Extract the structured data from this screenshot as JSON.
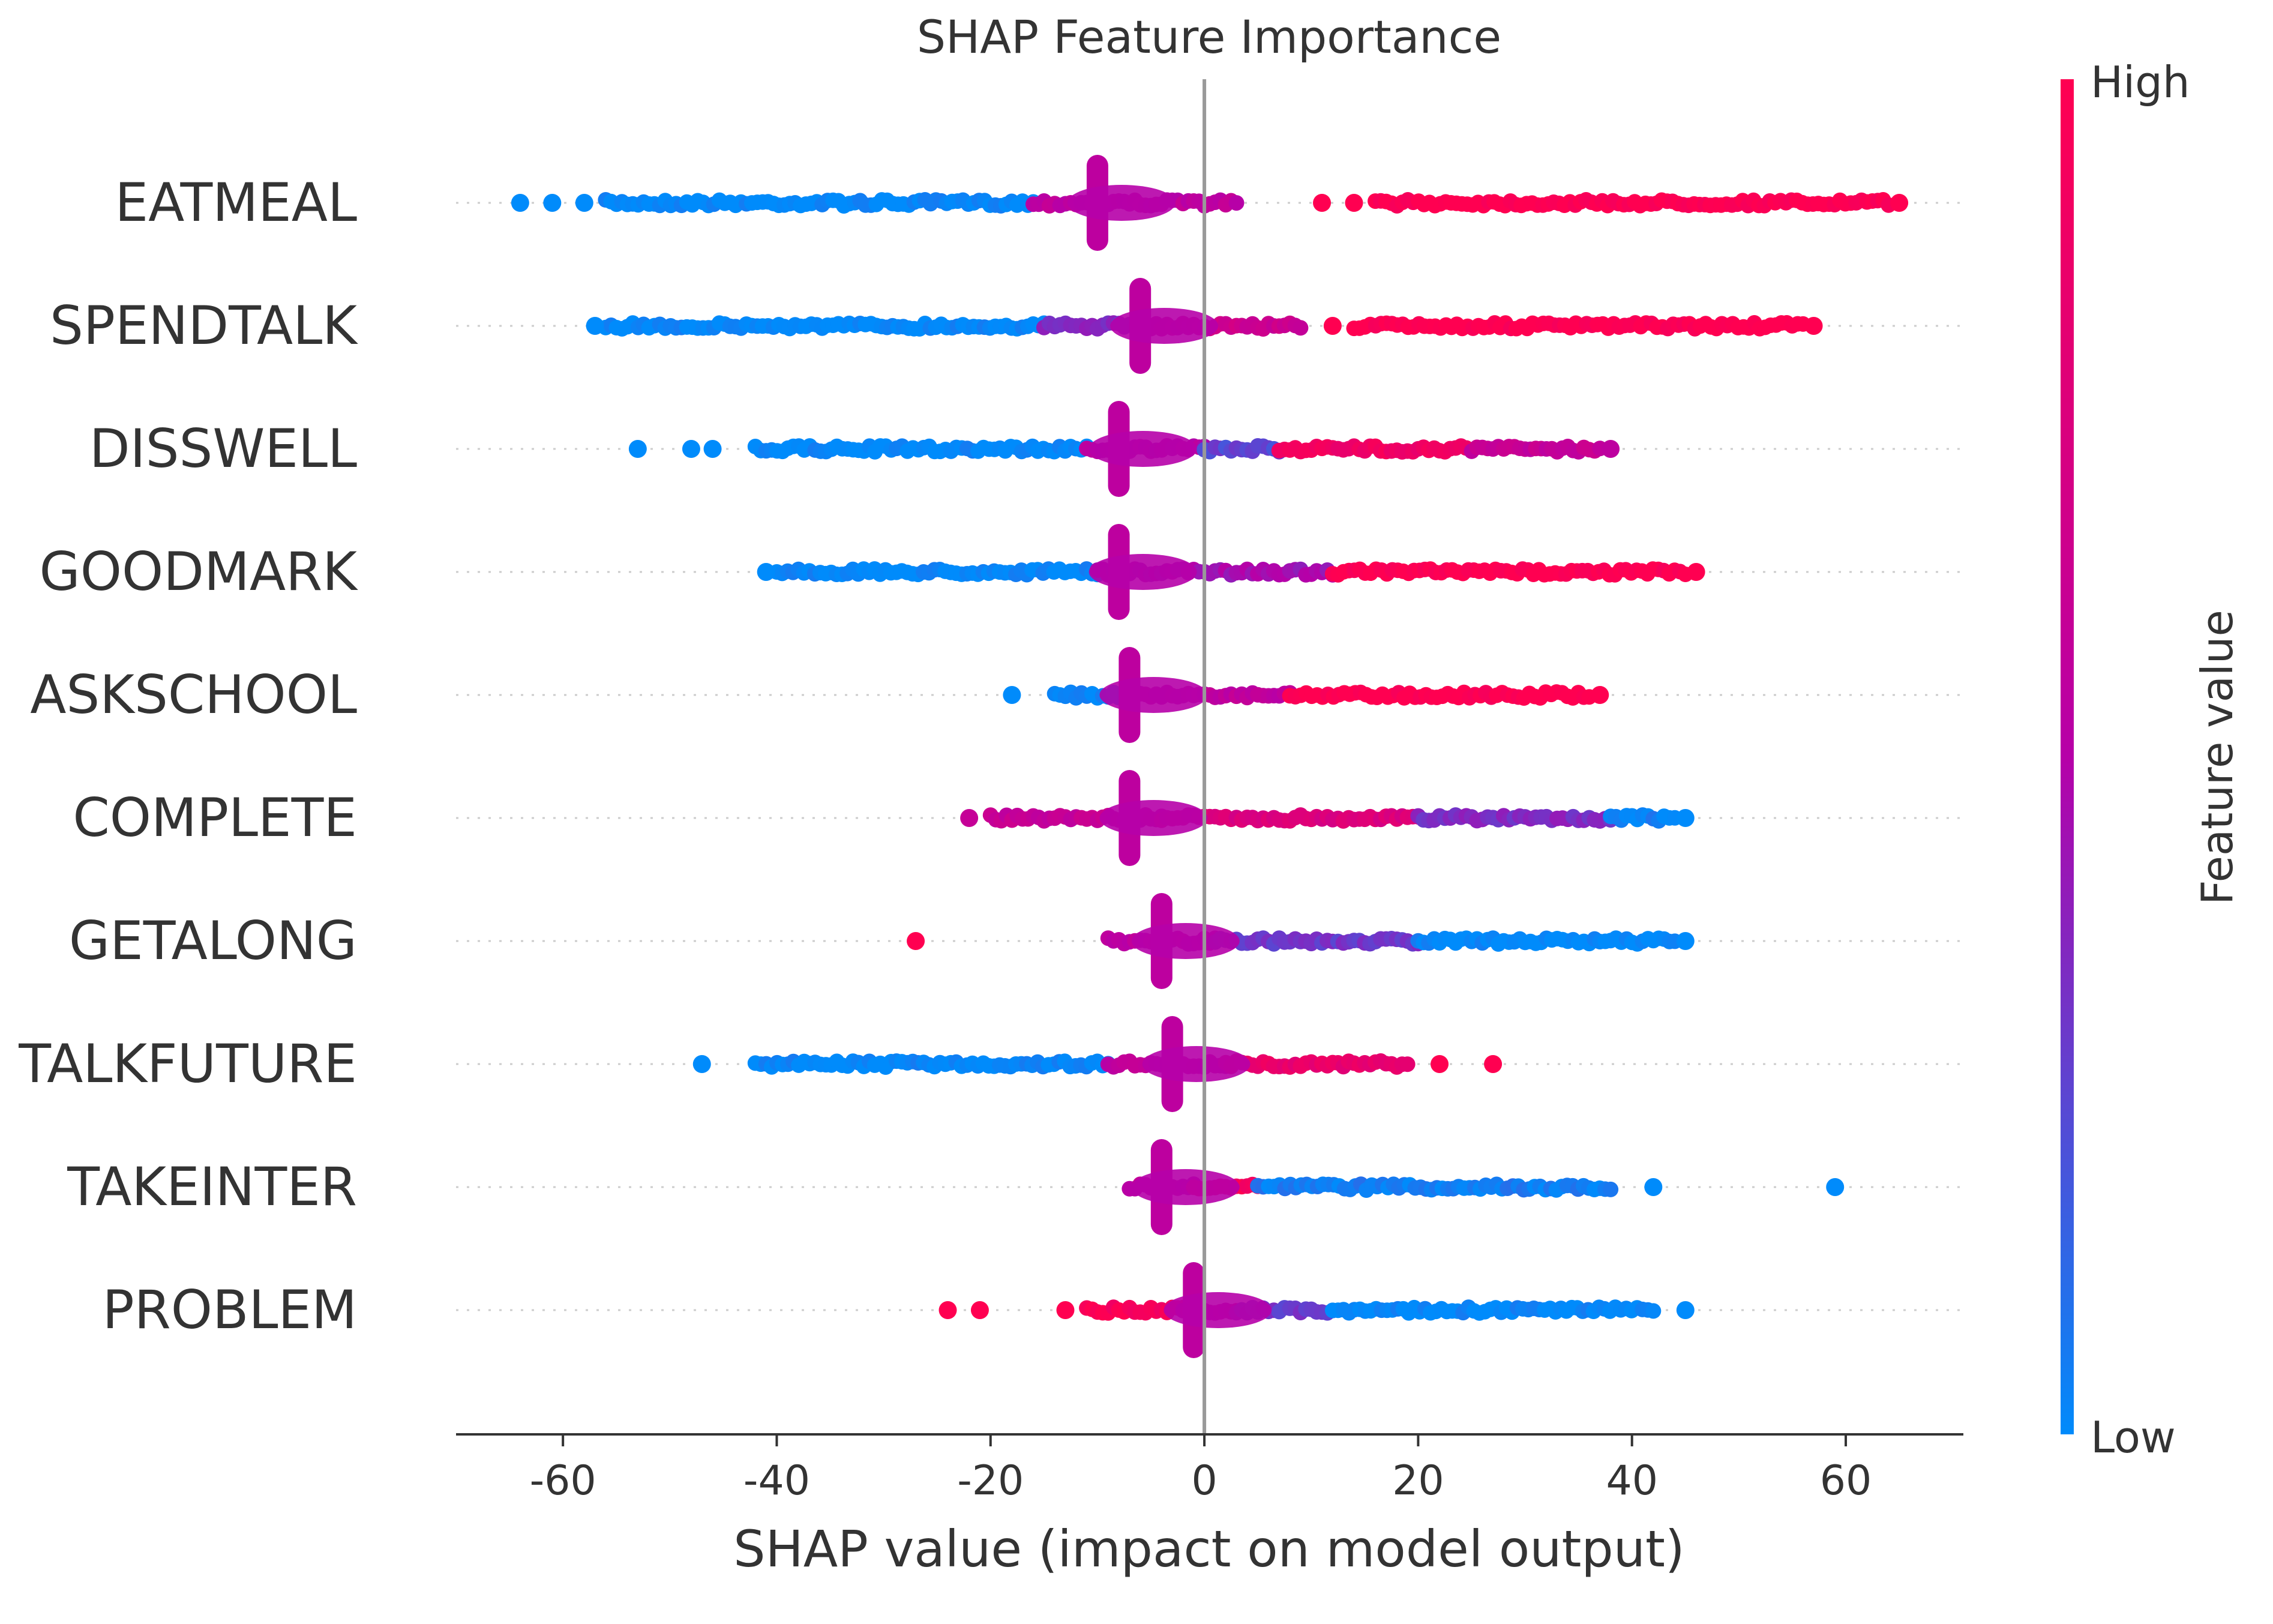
{
  "chart_data": {
    "type": "scatter",
    "subtype": "shap-beeswarm",
    "title": "SHAP Feature Importance",
    "xlabel": "SHAP value (impact on model output)",
    "ylabel": "",
    "xlim": [
      -70,
      71
    ],
    "xticks": [
      -60,
      -40,
      -20,
      0,
      20,
      40,
      60
    ],
    "xtick_labels": [
      "-60",
      "-40",
      "-20",
      "0",
      "20",
      "40",
      "60"
    ],
    "zero_line": 0,
    "grid": false,
    "colorbar": {
      "label": "Feature value",
      "high_label": "High",
      "low_label": "Low",
      "high_color": "#ff0051",
      "mid_color": "#b600a8",
      "low_color": "#008bfb"
    },
    "features": [
      {
        "name": "EATMEAL",
        "base_value": -10,
        "points": [
          {
            "x": -64,
            "c": 0.0
          },
          {
            "x": -61,
            "c": 0.0
          },
          {
            "x": -58,
            "c": 0.0
          },
          {
            "x": 11,
            "c": 1.0
          },
          {
            "x": 14,
            "c": 1.0
          },
          {
            "x": 65,
            "c": 1.0
          }
        ],
        "segments": [
          {
            "from": -56,
            "to": -16,
            "c": 0.0
          },
          {
            "from": -16,
            "to": 3,
            "c": 0.55
          },
          {
            "from": 16,
            "to": 64,
            "c": 1.0
          }
        ]
      },
      {
        "name": "SPENDTALK",
        "base_value": -6,
        "points": [
          {
            "x": -57,
            "c": 0.0
          },
          {
            "x": 12,
            "c": 1.0
          },
          {
            "x": 57,
            "c": 1.0
          }
        ],
        "segments": [
          {
            "from": -56,
            "to": -15,
            "c": 0.0
          },
          {
            "from": -15,
            "to": -6,
            "c": 0.35
          },
          {
            "from": -6,
            "to": 9,
            "c": 0.65
          },
          {
            "from": 14,
            "to": 56,
            "c": 1.0
          }
        ]
      },
      {
        "name": "DISSWELL",
        "base_value": -8,
        "points": [
          {
            "x": -53,
            "c": 0.0
          },
          {
            "x": -48,
            "c": 0.0
          },
          {
            "x": -46,
            "c": 0.0
          },
          {
            "x": 38,
            "c": 0.55
          }
        ],
        "segments": [
          {
            "from": -42,
            "to": -11,
            "c": 0.0
          },
          {
            "from": -11,
            "to": 0,
            "c": 0.5
          },
          {
            "from": 0,
            "to": 7,
            "c": 0.25
          },
          {
            "from": 7,
            "to": 25,
            "c": 0.9
          },
          {
            "from": 25,
            "to": 37,
            "c": 0.6
          }
        ]
      },
      {
        "name": "GOODMARK",
        "base_value": -8,
        "points": [
          {
            "x": -41,
            "c": 0.0
          },
          {
            "x": 46,
            "c": 1.0
          }
        ],
        "segments": [
          {
            "from": -40,
            "to": -10,
            "c": 0.0
          },
          {
            "from": -10,
            "to": 12,
            "c": 0.45
          },
          {
            "from": 12,
            "to": 45,
            "c": 1.0
          }
        ]
      },
      {
        "name": "ASKSCHOOL",
        "base_value": -7,
        "points": [
          {
            "x": -18,
            "c": 0.0
          },
          {
            "x": 37,
            "c": 1.0
          }
        ],
        "segments": [
          {
            "from": -14,
            "to": -7,
            "c": 0.0
          },
          {
            "from": -7,
            "to": 8,
            "c": 0.55
          },
          {
            "from": 8,
            "to": 36,
            "c": 1.0
          }
        ]
      },
      {
        "name": "COMPLETE",
        "base_value": -7,
        "points": [
          {
            "x": -22,
            "c": 0.6
          },
          {
            "x": 45,
            "c": 0.0
          }
        ],
        "segments": [
          {
            "from": -20,
            "to": -4,
            "c": 0.6
          },
          {
            "from": -4,
            "to": 20,
            "c": 0.75
          },
          {
            "from": 20,
            "to": 38,
            "c": 0.35
          },
          {
            "from": 38,
            "to": 44,
            "c": 0.05
          }
        ]
      },
      {
        "name": "GETALONG",
        "base_value": -4,
        "points": [
          {
            "x": -27,
            "c": 1.0
          },
          {
            "x": 45,
            "c": 0.0
          }
        ],
        "segments": [
          {
            "from": -9,
            "to": 1,
            "c": 0.55
          },
          {
            "from": 1,
            "to": 20,
            "c": 0.3
          },
          {
            "from": 20,
            "to": 44,
            "c": 0.0
          }
        ]
      },
      {
        "name": "TALKFUTURE",
        "base_value": -3,
        "points": [
          {
            "x": -47,
            "c": 0.0
          },
          {
            "x": 22,
            "c": 1.0
          },
          {
            "x": 27,
            "c": 1.0
          }
        ],
        "segments": [
          {
            "from": -42,
            "to": -9,
            "c": 0.0
          },
          {
            "from": -9,
            "to": 2,
            "c": 0.55
          },
          {
            "from": 2,
            "to": 19,
            "c": 0.85
          }
        ]
      },
      {
        "name": "TAKEINTER",
        "base_value": -4,
        "points": [
          {
            "x": 59,
            "c": 0.0
          },
          {
            "x": 42,
            "c": 0.0
          }
        ],
        "segments": [
          {
            "from": -7,
            "to": -1,
            "c": 0.55
          },
          {
            "from": -1,
            "to": 5,
            "c": 0.95
          },
          {
            "from": 5,
            "to": 38,
            "c": 0.05
          }
        ]
      },
      {
        "name": "PROBLEM",
        "base_value": -1,
        "points": [
          {
            "x": -24,
            "c": 1.0
          },
          {
            "x": -21,
            "c": 1.0
          },
          {
            "x": -13,
            "c": 1.0
          },
          {
            "x": 45,
            "c": 0.0
          }
        ],
        "segments": [
          {
            "from": -11,
            "to": -2,
            "c": 0.95
          },
          {
            "from": -2,
            "to": 3,
            "c": 0.6
          },
          {
            "from": 3,
            "to": 12,
            "c": 0.3
          },
          {
            "from": 12,
            "to": 42,
            "c": 0.0
          }
        ]
      }
    ]
  }
}
